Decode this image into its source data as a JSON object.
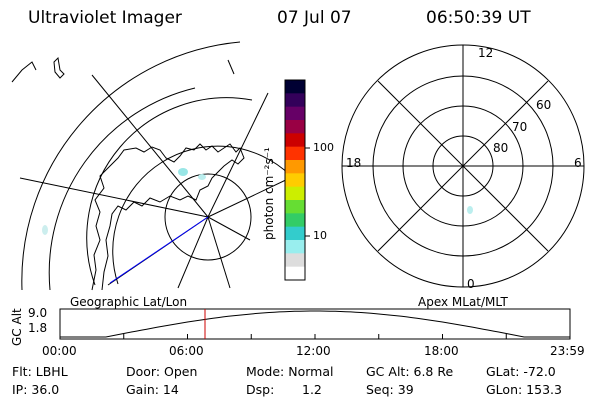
{
  "header": {
    "instrument": "Ultraviolet Imager",
    "date": "07 Jul 07",
    "time": "06:50:39 UT"
  },
  "colorbar": {
    "unit_label": "photon cm⁻²s⁻¹",
    "tick_100": "100",
    "tick_10": "10",
    "colors": [
      "#000033",
      "#33005a",
      "#660066",
      "#990044",
      "#cc0000",
      "#ff3300",
      "#ff9900",
      "#ffcc00",
      "#ccee00",
      "#66dd33",
      "#33cc66",
      "#33cccc",
      "#99eeee",
      "#dddddd",
      "#ffffff"
    ]
  },
  "polar_plot": {
    "label_12": "12",
    "label_18": "18",
    "label_6": "6",
    "label_0": "0",
    "lat_60": "60",
    "lat_70": "70",
    "lat_80": "80"
  },
  "altitude_strip": {
    "axis_label": "GC Alt",
    "left_title": "Geographic Lat/Lon",
    "right_title": "Apex MLat/MLT",
    "y_top": "9.0",
    "y_bottom": "1.8",
    "time_ticks": [
      "00:00",
      "06:00",
      "12:00",
      "18:00",
      "23:59"
    ],
    "marker_color": "#cc0000",
    "curve_color": "#000000"
  },
  "info": {
    "filter": "Flt: LBHL",
    "door": "Door: Open",
    "mode": "Mode: Normal",
    "gc_alt": "GC Alt: 6.8 Re",
    "glat": "GLat: -72.0",
    "ip": "IP: 36.0",
    "gain": "Gain: 14",
    "dsp_label": "Dsp:",
    "dsp_value": "1.2",
    "seq": "Seq: 39",
    "glon": "GLon: 153.3"
  }
}
